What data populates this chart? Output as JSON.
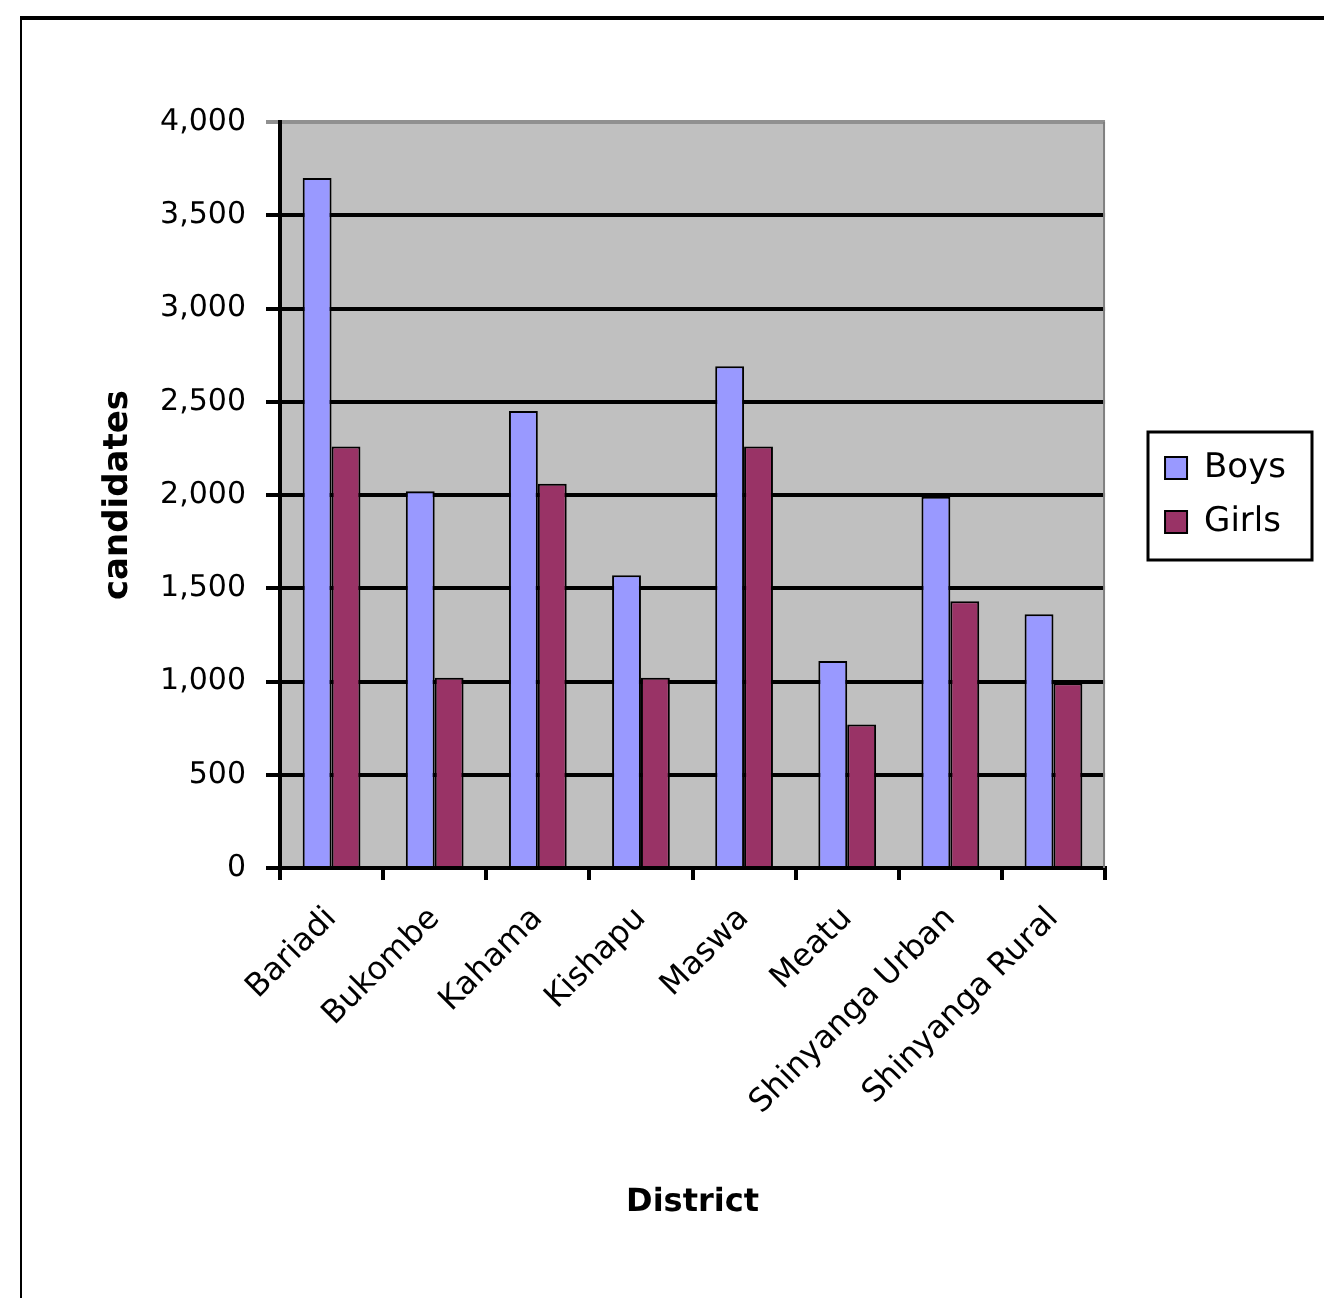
{
  "chart_data": {
    "type": "bar",
    "xlabel": "District",
    "ylabel": "candidates",
    "categories": [
      "Bariadi",
      "Bukombe",
      "Kahama",
      "Kishapu",
      "Maswa",
      "Meatu",
      "Shinyanga Urban",
      "Shinyanga Rural"
    ],
    "series": [
      {
        "name": "Boys",
        "color": "#9999ff",
        "values": [
          3700,
          2020,
          2450,
          1570,
          2690,
          1110,
          1990,
          1360
        ]
      },
      {
        "name": "Girls",
        "color": "#993366",
        "values": [
          2260,
          1020,
          2060,
          1020,
          2260,
          770,
          1430,
          990
        ]
      }
    ],
    "ylim": [
      0,
      4000
    ],
    "yticks": [
      0,
      500,
      {
        "value": 1000,
        "label": "1,000"
      },
      {
        "value": 1500,
        "label": "1,500"
      },
      {
        "value": 2000,
        "label": "2,000"
      },
      {
        "value": 2500,
        "label": "2,500"
      },
      {
        "value": 3000,
        "label": "3,000"
      },
      {
        "value": 3500,
        "label": "3,500"
      },
      {
        "value": 4000,
        "label": "4,000"
      }
    ],
    "grid": "y",
    "legend": "right"
  }
}
